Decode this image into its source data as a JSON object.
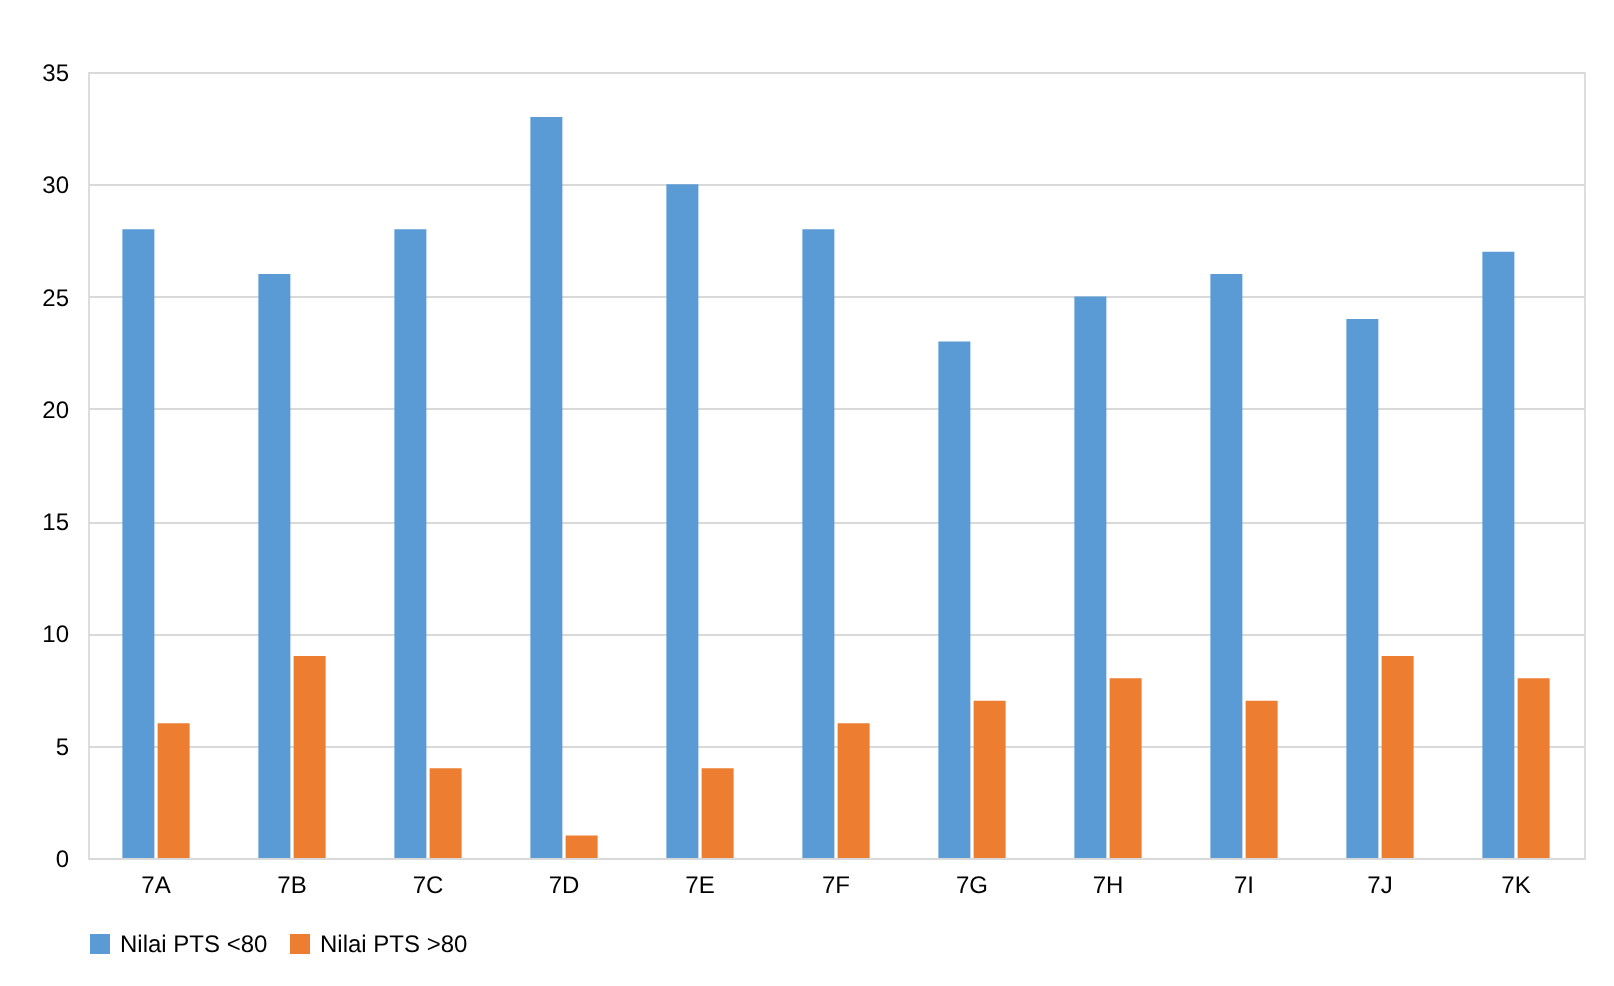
{
  "chart_data": {
    "type": "bar",
    "categories": [
      "7A",
      "7B",
      "7C",
      "7D",
      "7E",
      "7F",
      "7G",
      "7H",
      "7I",
      "7J",
      "7K"
    ],
    "series": [
      {
        "name": "Nilai PTS <80",
        "color": "#5b9bd5",
        "values": [
          28,
          26,
          28,
          33,
          30,
          28,
          23,
          25,
          26,
          24,
          27
        ]
      },
      {
        "name": "Nilai PTS >80",
        "color": "#ed7d31",
        "values": [
          6,
          9,
          4,
          1,
          4,
          6,
          7,
          8,
          7,
          9,
          8
        ]
      }
    ],
    "ylim": [
      0,
      35
    ],
    "yticks": [
      0,
      5,
      10,
      15,
      20,
      25,
      30,
      35
    ],
    "grid": "y",
    "legend": "bottom"
  }
}
